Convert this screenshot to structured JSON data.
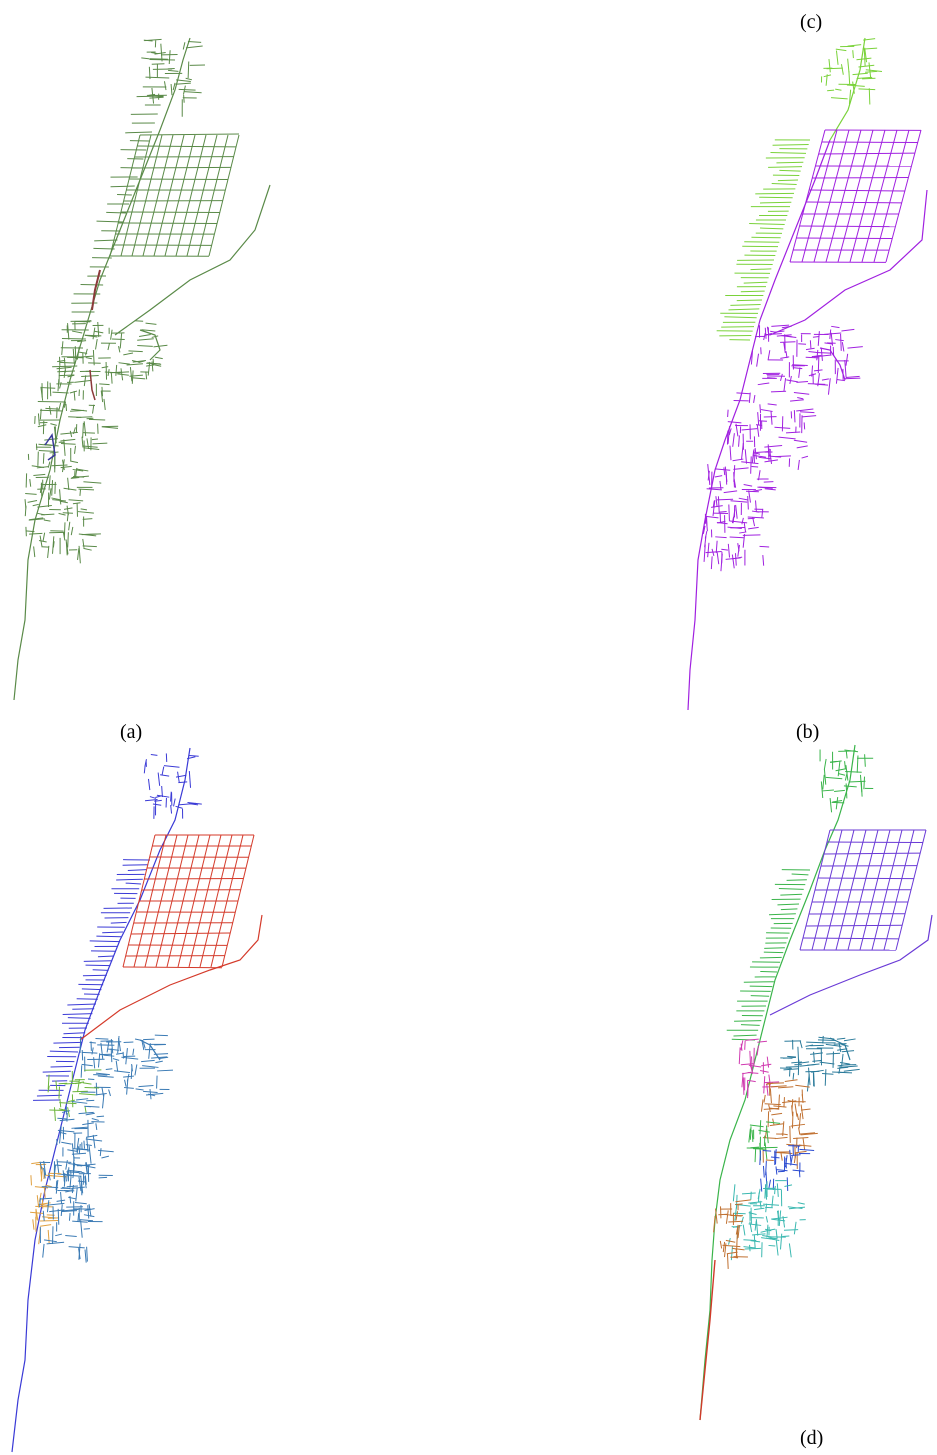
{
  "captions": {
    "a": "(a)",
    "b": "(b)",
    "c": "(c)",
    "d": "(d)"
  },
  "panels": [
    {
      "id": "a",
      "palette": {
        "main": "#5a8a48",
        "accent1": "#8b3a3a",
        "accent2": "#3a3a9a"
      }
    },
    {
      "id": "b",
      "palette": {
        "north": "#7ad23a",
        "main": "#a020e0"
      }
    },
    {
      "id": "c",
      "palette": {
        "north": "#3a3ad6",
        "grid": "#d43a2a",
        "south": "#3a7ab4",
        "green": "#6ab43a",
        "orange": "#e0a040"
      }
    },
    {
      "id": "d",
      "palette": {
        "north": "#3ab44a",
        "grid": "#6a3ad6",
        "teal": "#2a7a9a",
        "orange": "#c07030",
        "magenta": "#d03ab0",
        "cyan": "#3ab8b0",
        "red": "#d03a2a",
        "blue": "#2a4ad0"
      }
    }
  ]
}
